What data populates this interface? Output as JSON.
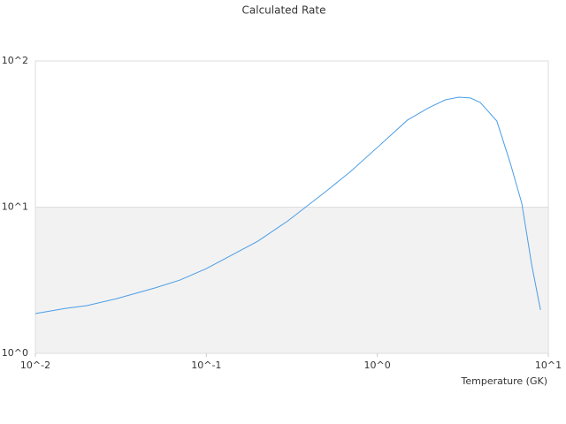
{
  "chart_data": {
    "type": "line",
    "title": "Calculated Rate",
    "x_label": "Temperature (GK)",
    "xlog": true,
    "ylog": true,
    "band_color": "#f2f2f2",
    "xlim": [
      0.01,
      10
    ],
    "ylim": [
      1,
      100
    ],
    "xticks": [
      {
        "value": 0.01,
        "label": "10^-2"
      },
      {
        "value": 0.1,
        "label": "10^-1"
      },
      {
        "value": 1,
        "label": "10^0"
      },
      {
        "value": 10,
        "label": "10^1"
      }
    ],
    "yticks": [
      {
        "value": 1,
        "label": "10^0"
      },
      {
        "value": 10,
        "label": "10^1"
      },
      {
        "value": 100,
        "label": "10^2"
      }
    ],
    "series": [
      {
        "color": "#4a9de6",
        "x": [
          0.01,
          0.015,
          0.02,
          0.03,
          0.05,
          0.07,
          0.1,
          0.15,
          0.2,
          0.3,
          0.5,
          0.7,
          1,
          1.5,
          2,
          2.5,
          3,
          3.5,
          4,
          5,
          6,
          7,
          8,
          9
        ],
        "values": [
          1.87,
          2.03,
          2.12,
          2.37,
          2.8,
          3.17,
          3.8,
          4.89,
          5.85,
          8.06,
          12.8,
          17.6,
          25.6,
          39.4,
          47.9,
          54.2,
          56.5,
          55.8,
          52,
          38.8,
          19.9,
          10.6,
          4.02,
          1.98
        ]
      }
    ]
  }
}
